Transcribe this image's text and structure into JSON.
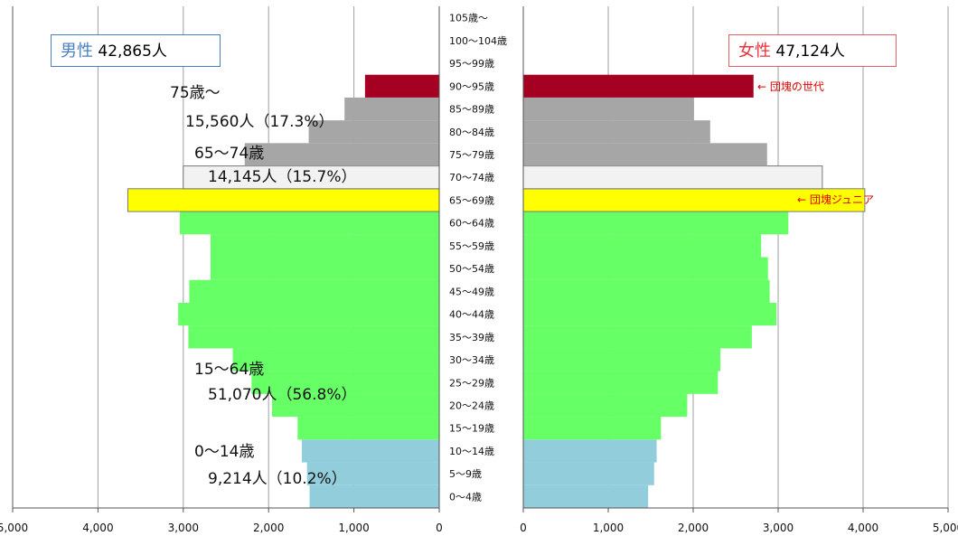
{
  "chart_data": {
    "type": "bar",
    "orientation": "horizontal-population-pyramid",
    "categories": [
      "0〜4歳",
      "5〜9歳",
      "10〜14歳",
      "15〜19歳",
      "20〜24歳",
      "25〜29歳",
      "30〜34歳",
      "35〜39歳",
      "40〜44歳",
      "45〜49歳",
      "50〜54歳",
      "55〜59歳",
      "60〜64歳",
      "65〜69歳",
      "70〜74歳",
      "75〜79歳",
      "80〜84歳",
      "85〜89歳",
      "90〜95歳",
      "95〜99歳",
      "100〜104歳",
      "105歳〜"
    ],
    "series": [
      {
        "name": "男性",
        "values": [
          1520,
          1550,
          1610,
          1660,
          1960,
          2200,
          2420,
          2940,
          3060,
          2930,
          2680,
          2680,
          3040,
          3650,
          3000,
          2280,
          1530,
          1110,
          870,
          0,
          0,
          0
        ]
      },
      {
        "name": "女性",
        "values": [
          1470,
          1540,
          1570,
          1620,
          1930,
          2290,
          2320,
          2690,
          2980,
          2900,
          2880,
          2800,
          3120,
          4020,
          3520,
          2870,
          2200,
          2010,
          2710,
          0,
          0,
          0
        ]
      }
    ],
    "bar_colors": [
      "#92cddc",
      "#92cddc",
      "#92cddc",
      "#66ff66",
      "#66ff66",
      "#66ff66",
      "#66ff66",
      "#66ff66",
      "#66ff66",
      "#66ff66",
      "#66ff66",
      "#66ff66",
      "#66ff66",
      "#ffff00",
      "#f2f2f2",
      "#a6a6a6",
      "#a6a6a6",
      "#a6a6a6",
      "#a50021",
      "#a6a6a6",
      "#a6a6a6",
      "#a6a6a6"
    ],
    "xlim": [
      0,
      5000
    ],
    "x_ticks": [
      "5,000",
      "4,000",
      "3,000",
      "2,000",
      "1,000",
      "0",
      "0",
      "1,000",
      "2,000",
      "3,000",
      "4,000",
      "5,000"
    ],
    "grid": true
  },
  "legend": {
    "male_label": "男性",
    "male_total": "42,865人",
    "female_label": "女性",
    "female_total": "47,124人"
  },
  "groups": {
    "g75_title": "75歳〜",
    "g75_value": "15,560人（17.3%）",
    "g65_title": "65〜74歳",
    "g65_value": "14,145人（15.7%）",
    "g15_title": "15〜64歳",
    "g15_value": "51,070人（56.8%）",
    "g0_title": "0〜14歳",
    "g0_value": "9,214人（10.2%）"
  },
  "annotations": {
    "dankai": "← 団塊の世代",
    "dankai_junior": "← 団塊ジュニア"
  },
  "colors": {
    "grid": "#a0a0a0",
    "axis": "#555555",
    "text_red": "#e00000"
  }
}
